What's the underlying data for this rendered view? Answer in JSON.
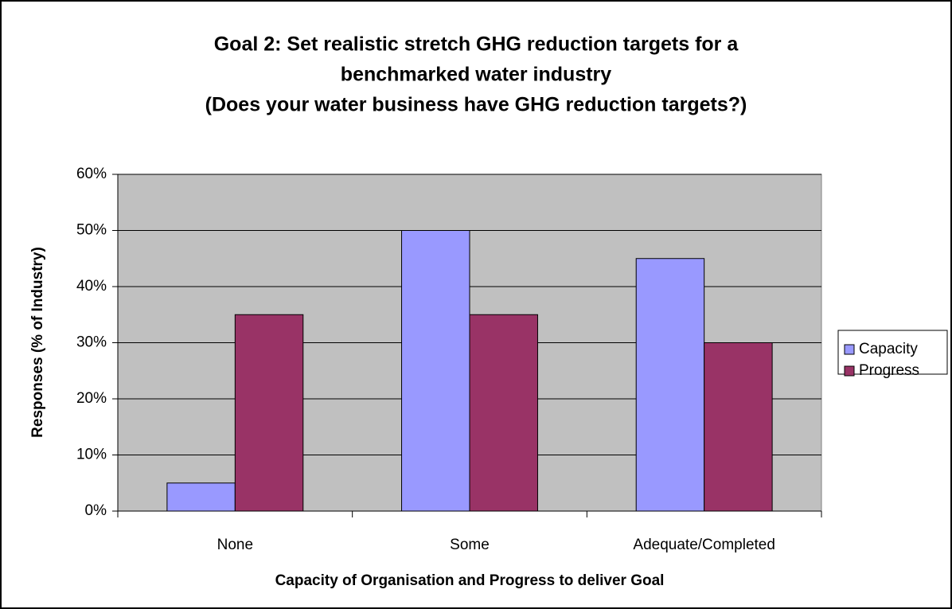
{
  "chart_data": {
    "type": "bar",
    "title": [
      "Goal 2: Set realistic stretch GHG reduction targets for a",
      "benchmarked water industry",
      "(Does your water business have GHG reduction targets?)"
    ],
    "x_label": "Capacity of Organisation and Progress to deliver Goal",
    "y_label": "Responses (% of Industry)",
    "categories": [
      "None",
      "Some",
      "Adequate/Completed"
    ],
    "series": [
      {
        "name": "Capacity",
        "color": "#9999ff",
        "values": [
          5,
          50,
          45
        ]
      },
      {
        "name": "Progress",
        "color": "#993366",
        "values": [
          35,
          35,
          30
        ]
      }
    ],
    "ylim": [
      0,
      60
    ],
    "yticks": [
      {
        "value": 0,
        "label": "0%"
      },
      {
        "value": 10,
        "label": "10%"
      },
      {
        "value": 20,
        "label": "20%"
      },
      {
        "value": 30,
        "label": "30%"
      },
      {
        "value": 40,
        "label": "40%"
      },
      {
        "value": 50,
        "label": "50%"
      },
      {
        "value": 60,
        "label": "60%"
      }
    ],
    "grid": true,
    "legend": "right"
  }
}
